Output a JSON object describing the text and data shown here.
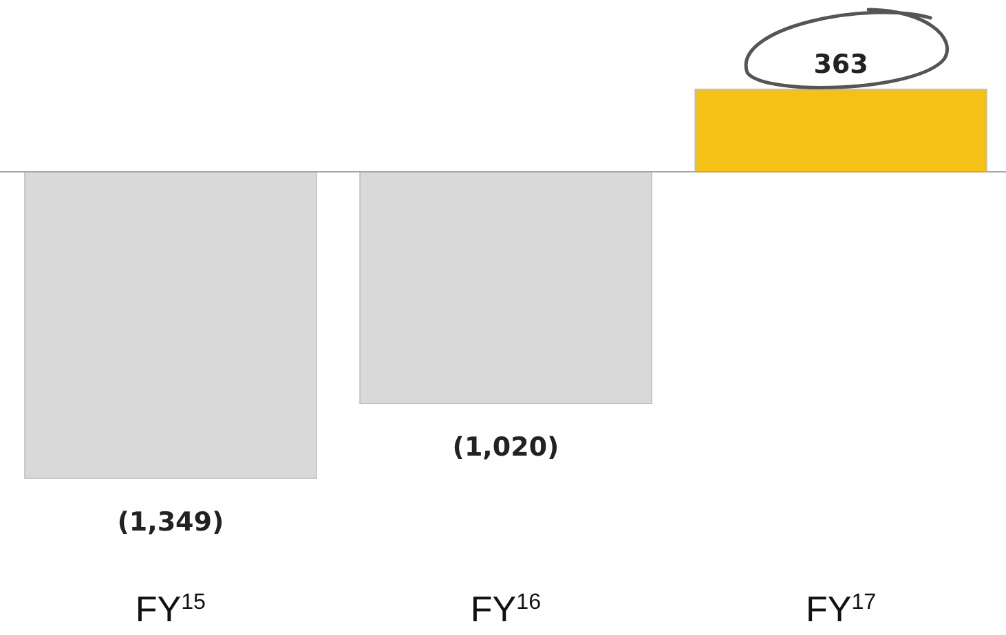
{
  "chart_data": {
    "type": "bar",
    "categories": [
      "FY$^{15}$",
      "FY$^{16}$",
      "FY$^{17}$"
    ],
    "values": [
      -1349,
      -1020,
      363
    ],
    "colors": [
      "#d9d9d9",
      "#d9d9d9",
      "#f5c117"
    ],
    "value_labels": [
      "(1,349)",
      "(1,020)",
      "363"
    ]
  }
}
